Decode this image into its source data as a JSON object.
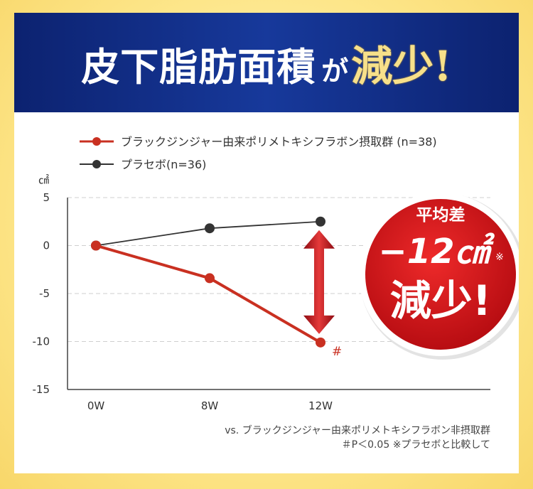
{
  "header": {
    "title_main": "皮下脂肪面積",
    "title_particle": "が",
    "title_accent": "減少!"
  },
  "badge": {
    "line1": "平均差",
    "value": "−12㎠",
    "note_mark": "※",
    "line3": "減少!",
    "colors": {
      "fill": "#d7141a",
      "ring": "#ffffff"
    }
  },
  "footnotes": {
    "line1": "vs. ブラックジンジャー由来ポリメトキシフラボン非摂取群",
    "line2": "＃P＜0.05 ※プラセボと比較して"
  },
  "chart_data": {
    "type": "line",
    "categories": [
      "0W",
      "8W",
      "12W"
    ],
    "ylabel": "㎠",
    "ylim": [
      -15,
      5
    ],
    "yticks": [
      5,
      0,
      -5,
      -10,
      -15
    ],
    "grid": "horizontal-dashed",
    "legend_position": "top-left",
    "series": [
      {
        "name": "ブラックジンジャー由来ポリメトキシフラボン摂取群 (n=38)",
        "values": [
          0,
          -3.4,
          -10.1
        ],
        "color": "#c93021"
      },
      {
        "name": "プラセボ(n=36)",
        "values": [
          0,
          1.8,
          2.5
        ],
        "color": "#333333"
      }
    ],
    "annotations": [
      {
        "label": "#",
        "category": "12W",
        "series": 0
      }
    ],
    "difference_arrow": {
      "category": "12W",
      "from": 2.5,
      "to": -10.1,
      "color": "#c8202a"
    }
  }
}
